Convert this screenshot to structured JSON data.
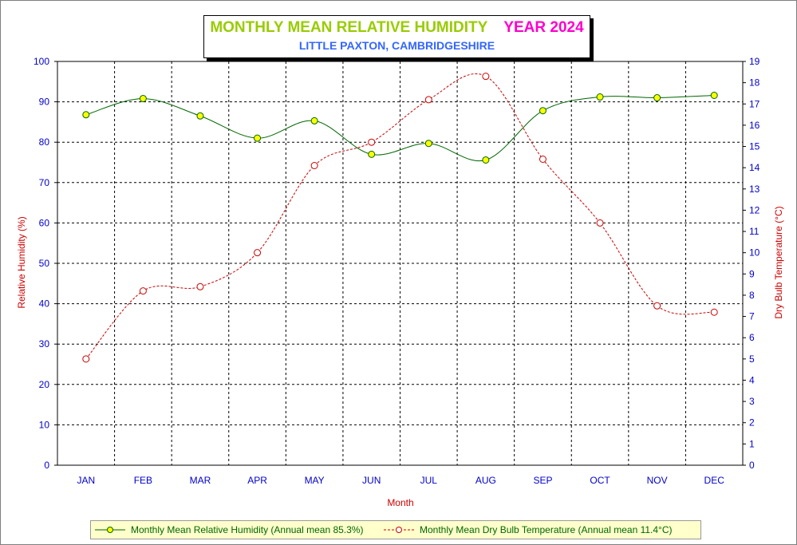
{
  "chart_data": {
    "type": "line",
    "title": "MONTHLY MEAN RELATIVE HUMIDITY",
    "title_year": "YEAR 2024",
    "subtitle": "LITTLE PAXTON, CAMBRIDGESHIRE",
    "xlabel": "Month",
    "ylabel_left": "Relative Humidity (%)",
    "ylabel_right": "Dry Bulb Temperature (°C)",
    "categories": [
      "JAN",
      "FEB",
      "MAR",
      "APR",
      "MAY",
      "JUN",
      "JUL",
      "AUG",
      "SEP",
      "OCT",
      "NOV",
      "DEC"
    ],
    "ylim_left": [
      0,
      100
    ],
    "ylim_right": [
      0,
      19
    ],
    "yticks_left": [
      "0",
      "10",
      "20",
      "30",
      "40",
      "50",
      "60",
      "70",
      "80",
      "90",
      "100"
    ],
    "yticks_right": [
      "0",
      "1",
      "2",
      "3",
      "4",
      "5",
      "6",
      "7",
      "8",
      "9",
      "10",
      "11",
      "12",
      "13",
      "14",
      "15",
      "16",
      "17",
      "18",
      "19"
    ],
    "grid": true,
    "legend_position": "bottom",
    "series": [
      {
        "name": "Monthly Mean Relative Humidity (Annual mean 85.3%)",
        "axis": "left",
        "color": "#006600",
        "marker_fill": "#ffff00",
        "values": [
          86.8,
          90.8,
          86.5,
          81.0,
          85.3,
          77.0,
          79.7,
          75.6,
          87.8,
          91.2,
          91.0,
          91.6
        ]
      },
      {
        "name": "Monthly Mean Dry Bulb Temperature (Annual mean 11.4°C)",
        "axis": "right",
        "color": "#cc0000",
        "marker_fill": "#ffffff",
        "values": [
          5.0,
          8.2,
          8.4,
          10.0,
          14.1,
          15.2,
          17.2,
          18.3,
          14.4,
          11.4,
          7.5,
          7.2
        ]
      }
    ]
  }
}
